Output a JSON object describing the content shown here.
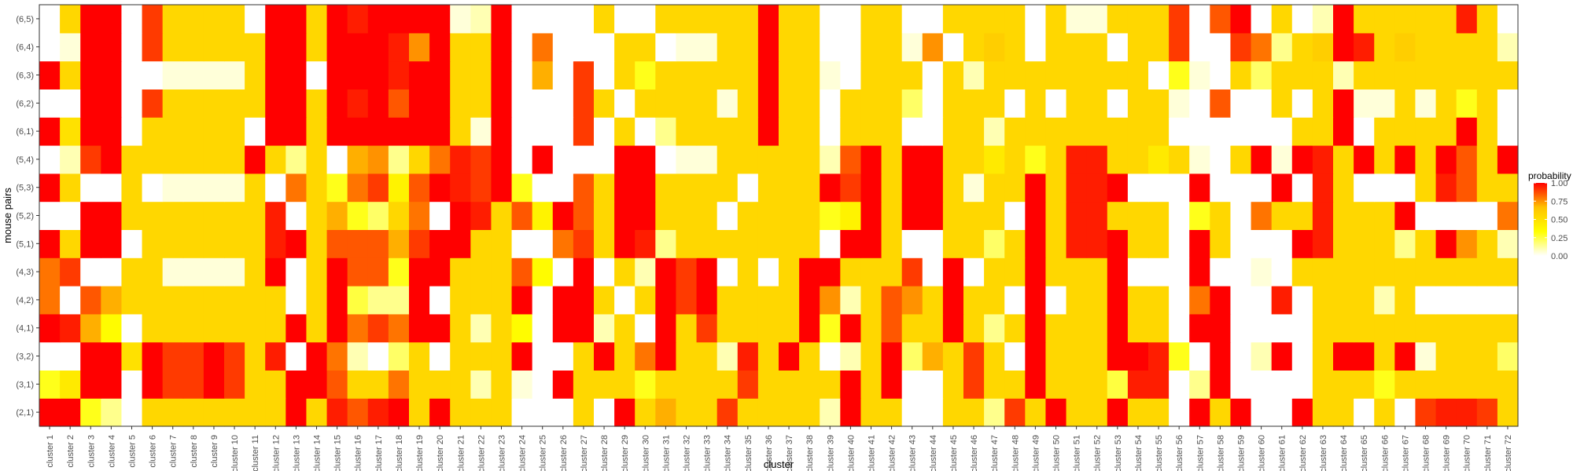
{
  "chart_data": {
    "type": "heatmap",
    "xlabel": "cluster",
    "ylabel": "mouse pairs",
    "x_categories": [
      "cluster 1",
      "cluster 2",
      "cluster 3",
      "cluster 4",
      "cluster 5",
      "cluster 6",
      "cluster 7",
      "cluster 8",
      "cluster 9",
      "cluster 10",
      "cluster 11",
      "cluster 12",
      "cluster 13",
      "cluster 14",
      "cluster 15",
      "cluster 16",
      "cluster 17",
      "cluster 18",
      "cluster 19",
      "cluster 20",
      "cluster 21",
      "cluster 22",
      "cluster 23",
      "cluster 24",
      "cluster 25",
      "cluster 26",
      "cluster 27",
      "cluster 28",
      "cluster 29",
      "cluster 30",
      "cluster 31",
      "cluster 32",
      "cluster 33",
      "cluster 34",
      "cluster 35",
      "cluster 36",
      "cluster 37",
      "cluster 38",
      "cluster 39",
      "cluster 40",
      "cluster 41",
      "cluster 42",
      "cluster 43",
      "cluster 44",
      "cluster 45",
      "cluster 46",
      "cluster 47",
      "cluster 48",
      "cluster 49",
      "cluster 50",
      "cluster 51",
      "cluster 52",
      "cluster 53",
      "cluster 54",
      "cluster 55",
      "cluster 56",
      "cluster 57",
      "cluster 58",
      "cluster 59",
      "cluster 60",
      "cluster 61",
      "cluster 62",
      "cluster 63",
      "cluster 64",
      "cluster 65",
      "cluster 66",
      "cluster 67",
      "cluster 68",
      "cluster 69",
      "cluster 70",
      "cluster 71",
      "cluster 72"
    ],
    "y_categories": [
      "(2,1)",
      "(3,1)",
      "(3,2)",
      "(4,1)",
      "(4,2)",
      "(4,3)",
      "(5,1)",
      "(5,2)",
      "(5,3)",
      "(5,4)",
      "(6,1)",
      "(6,2)",
      "(6,3)",
      "(6,4)",
      "(6,5)"
    ],
    "values": [
      [
        1.0,
        1.0,
        0.3,
        0.15,
        0.0,
        0.55,
        0.55,
        0.55,
        0.55,
        0.55,
        0.55,
        0.55,
        1.0,
        0.55,
        0.95,
        0.85,
        0.95,
        1.0,
        0.55,
        1.0,
        0.55,
        0.55,
        0.55,
        0.0,
        0.0,
        0.0,
        0.55,
        0.0,
        1.0,
        0.55,
        0.7,
        0.55,
        0.55,
        0.9,
        0.55,
        0.55,
        0.55,
        0.55,
        0.1,
        1.0,
        0.55,
        0.55,
        0.0,
        0.0,
        0.55,
        0.55,
        0.15,
        0.9,
        0.55,
        1.0,
        0.55,
        0.55,
        1.0,
        0.55,
        0.55,
        0.0,
        1.0,
        0.55,
        1.0,
        0.0,
        0.0,
        1.0,
        0.55,
        0.55,
        0.0,
        0.55,
        0.0,
        0.9,
        0.95,
        0.95,
        0.9,
        0.55
      ],
      [
        0.3,
        0.45,
        1.0,
        1.0,
        0.0,
        1.0,
        0.9,
        0.9,
        1.0,
        0.9,
        0.55,
        0.55,
        1.0,
        1.0,
        0.85,
        0.55,
        0.55,
        0.8,
        0.55,
        0.55,
        0.55,
        0.1,
        0.55,
        0.05,
        0.0,
        1.0,
        0.55,
        0.55,
        0.55,
        0.3,
        0.55,
        0.55,
        0.55,
        0.55,
        0.9,
        0.55,
        0.55,
        0.55,
        0.55,
        1.0,
        0.55,
        1.0,
        0.0,
        0.0,
        0.55,
        0.9,
        0.55,
        0.55,
        1.0,
        0.55,
        0.55,
        0.55,
        0.25,
        0.95,
        0.95,
        0.0,
        0.15,
        1.0,
        0.0,
        0.0,
        0.0,
        0.0,
        0.55,
        0.55,
        0.55,
        0.3,
        0.55,
        0.55,
        0.55,
        0.55,
        0.55,
        0.55
      ],
      [
        0.0,
        0.0,
        1.0,
        1.0,
        0.5,
        1.0,
        0.9,
        0.9,
        1.0,
        0.9,
        0.55,
        0.95,
        0.0,
        1.0,
        0.8,
        0.1,
        0.0,
        0.2,
        0.55,
        0.0,
        0.55,
        0.55,
        0.55,
        1.0,
        0.0,
        0.0,
        0.55,
        1.0,
        0.55,
        0.8,
        1.0,
        0.55,
        0.55,
        0.1,
        0.95,
        0.55,
        1.0,
        0.55,
        0.0,
        0.1,
        0.55,
        1.0,
        0.2,
        0.7,
        0.55,
        0.9,
        0.55,
        0.0,
        1.0,
        0.55,
        0.55,
        0.55,
        1.0,
        1.0,
        0.95,
        0.3,
        0.0,
        1.0,
        0.0,
        0.1,
        1.0,
        0.0,
        0.55,
        1.0,
        1.0,
        0.55,
        1.0,
        0.05,
        0.55,
        0.55,
        0.55,
        0.2
      ],
      [
        1.0,
        0.95,
        0.7,
        0.35,
        0.0,
        0.55,
        0.55,
        0.55,
        0.55,
        0.55,
        0.55,
        0.55,
        1.0,
        0.55,
        1.0,
        0.8,
        0.9,
        0.8,
        1.0,
        1.0,
        0.55,
        0.1,
        0.55,
        0.35,
        0.0,
        1.0,
        1.0,
        0.1,
        0.55,
        0.0,
        1.0,
        0.55,
        0.9,
        0.55,
        0.55,
        0.55,
        0.55,
        1.0,
        0.3,
        1.0,
        0.55,
        0.85,
        0.55,
        0.55,
        1.0,
        0.55,
        0.15,
        0.55,
        1.0,
        0.55,
        0.55,
        0.55,
        1.0,
        0.55,
        0.55,
        0.0,
        1.0,
        1.0,
        0.0,
        0.0,
        0.0,
        0.0,
        0.55,
        0.55,
        0.55,
        0.55,
        0.55,
        0.55,
        0.55,
        0.55,
        0.55,
        0.55
      ],
      [
        0.8,
        0.0,
        0.85,
        0.7,
        0.55,
        0.55,
        0.55,
        0.55,
        0.55,
        0.55,
        0.55,
        0.55,
        0.0,
        0.55,
        1.0,
        0.25,
        0.15,
        0.15,
        1.0,
        0.0,
        0.55,
        0.55,
        0.55,
        1.0,
        0.0,
        1.0,
        1.0,
        0.55,
        0.0,
        0.55,
        1.0,
        0.9,
        1.0,
        0.55,
        0.55,
        0.55,
        0.55,
        1.0,
        0.75,
        0.1,
        0.55,
        0.85,
        0.75,
        0.55,
        1.0,
        0.55,
        0.55,
        0.0,
        1.0,
        0.0,
        0.55,
        0.55,
        1.0,
        0.55,
        0.55,
        0.0,
        0.8,
        1.0,
        0.0,
        0.0,
        0.95,
        0.0,
        0.55,
        0.55,
        0.55,
        0.1,
        0.55,
        0.0,
        0.0,
        0.0,
        0.0,
        0.0
      ],
      [
        0.8,
        0.9,
        0.0,
        0.0,
        0.55,
        0.55,
        0.05,
        0.05,
        0.05,
        0.05,
        0.55,
        1.0,
        0.0,
        0.55,
        1.0,
        0.85,
        0.85,
        0.3,
        1.0,
        1.0,
        0.55,
        0.55,
        0.55,
        0.85,
        0.35,
        0.0,
        1.0,
        0.0,
        0.55,
        0.1,
        1.0,
        0.9,
        1.0,
        0.0,
        0.55,
        0.0,
        0.55,
        1.0,
        1.0,
        0.55,
        0.55,
        0.55,
        0.9,
        0.0,
        1.0,
        0.0,
        0.55,
        0.55,
        1.0,
        0.55,
        0.55,
        0.55,
        1.0,
        0.0,
        0.0,
        0.0,
        1.0,
        0.0,
        0.0,
        0.05,
        0.0,
        0.55,
        0.55,
        0.55,
        0.55,
        0.55,
        0.55,
        0.55,
        0.55,
        0.55,
        0.55,
        0.55
      ],
      [
        1.0,
        0.55,
        1.0,
        1.0,
        0.0,
        0.55,
        0.55,
        0.55,
        0.55,
        0.55,
        0.55,
        0.95,
        1.0,
        0.55,
        0.85,
        0.85,
        0.85,
        0.7,
        0.9,
        1.0,
        1.0,
        0.55,
        0.55,
        0.0,
        0.0,
        0.8,
        0.9,
        0.55,
        1.0,
        0.95,
        0.15,
        0.55,
        0.55,
        0.55,
        0.55,
        0.55,
        0.55,
        0.55,
        0.0,
        1.0,
        1.0,
        0.55,
        0.0,
        0.0,
        0.55,
        0.55,
        0.2,
        0.55,
        1.0,
        0.55,
        0.95,
        0.95,
        1.0,
        0.55,
        0.55,
        0.0,
        1.0,
        0.55,
        0.0,
        0.0,
        0.0,
        1.0,
        0.95,
        0.55,
        0.55,
        0.55,
        0.15,
        0.55,
        1.0,
        0.75,
        0.55,
        0.1
      ],
      [
        0.0,
        0.0,
        1.0,
        1.0,
        0.55,
        0.55,
        0.55,
        0.55,
        0.55,
        0.55,
        0.55,
        0.95,
        0.0,
        0.55,
        0.7,
        0.3,
        0.2,
        0.55,
        0.8,
        0.0,
        1.0,
        0.95,
        0.55,
        0.85,
        0.4,
        1.0,
        0.85,
        0.55,
        1.0,
        1.0,
        0.55,
        0.55,
        0.55,
        0.0,
        0.55,
        0.55,
        0.55,
        0.55,
        0.3,
        0.4,
        1.0,
        0.55,
        1.0,
        1.0,
        0.55,
        0.55,
        0.55,
        0.0,
        1.0,
        0.55,
        0.95,
        0.95,
        0.55,
        0.55,
        0.55,
        0.0,
        0.3,
        0.55,
        0.0,
        0.8,
        0.55,
        0.55,
        0.95,
        0.55,
        0.55,
        0.55,
        1.0,
        0.0,
        0.0,
        0.0,
        0.0,
        0.8
      ],
      [
        1.0,
        0.55,
        0.0,
        0.0,
        0.55,
        0.0,
        0.05,
        0.05,
        0.05,
        0.05,
        0.55,
        0.0,
        0.8,
        0.55,
        0.3,
        0.8,
        0.9,
        0.4,
        0.85,
        1.0,
        0.95,
        0.9,
        1.0,
        0.3,
        0.0,
        0.0,
        0.85,
        0.55,
        1.0,
        1.0,
        0.55,
        0.55,
        0.55,
        0.55,
        0.0,
        0.55,
        0.55,
        0.55,
        1.0,
        0.9,
        1.0,
        0.55,
        1.0,
        1.0,
        0.55,
        0.05,
        0.55,
        0.55,
        1.0,
        0.55,
        0.95,
        0.95,
        1.0,
        0.0,
        0.0,
        0.0,
        1.0,
        0.0,
        0.0,
        0.0,
        1.0,
        0.0,
        0.95,
        0.55,
        0.0,
        0.0,
        0.0,
        0.55,
        0.95,
        0.85,
        0.55,
        0.55
      ],
      [
        0.0,
        0.1,
        0.9,
        1.0,
        0.55,
        0.55,
        0.55,
        0.55,
        0.55,
        0.55,
        1.0,
        0.55,
        0.15,
        0.55,
        0.0,
        0.7,
        0.75,
        0.15,
        0.55,
        0.8,
        0.95,
        0.9,
        1.0,
        0.0,
        1.0,
        0.0,
        0.0,
        0.0,
        1.0,
        1.0,
        0.0,
        0.05,
        0.05,
        0.55,
        0.55,
        0.55,
        0.55,
        0.55,
        0.1,
        0.85,
        1.0,
        0.55,
        1.0,
        1.0,
        0.55,
        0.55,
        0.45,
        0.55,
        0.3,
        0.55,
        0.95,
        0.95,
        0.55,
        0.55,
        0.45,
        0.55,
        0.05,
        0.0,
        0.55,
        1.0,
        0.05,
        1.0,
        0.95,
        0.55,
        1.0,
        0.55,
        1.0,
        0.55,
        1.0,
        0.85,
        0.55,
        1.0
      ],
      [
        1.0,
        0.5,
        1.0,
        1.0,
        0.0,
        0.55,
        0.55,
        0.55,
        0.55,
        0.55,
        0.0,
        1.0,
        1.0,
        0.55,
        1.0,
        1.0,
        1.0,
        1.0,
        1.0,
        1.0,
        0.55,
        0.05,
        1.0,
        0.0,
        0.0,
        0.0,
        0.9,
        0.0,
        0.55,
        0.0,
        0.15,
        0.55,
        0.55,
        0.55,
        0.55,
        1.0,
        0.55,
        0.55,
        0.0,
        0.55,
        0.55,
        0.55,
        0.0,
        0.0,
        0.55,
        0.55,
        0.1,
        0.55,
        0.55,
        0.55,
        0.55,
        0.55,
        0.55,
        0.55,
        0.55,
        0.0,
        0.0,
        0.0,
        0.0,
        0.0,
        0.0,
        0.55,
        0.55,
        1.0,
        0.0,
        0.55,
        0.55,
        0.55,
        0.55,
        1.0,
        0.55,
        0.0
      ],
      [
        0.0,
        0.0,
        1.0,
        1.0,
        0.0,
        0.9,
        0.55,
        0.55,
        0.55,
        0.55,
        0.55,
        1.0,
        1.0,
        0.55,
        1.0,
        0.95,
        1.0,
        0.85,
        1.0,
        1.0,
        0.55,
        0.55,
        1.0,
        0.0,
        0.0,
        0.0,
        0.9,
        0.55,
        0.0,
        0.55,
        0.55,
        0.55,
        0.55,
        0.05,
        0.55,
        1.0,
        0.55,
        0.55,
        0.0,
        0.55,
        0.55,
        0.55,
        0.2,
        0.0,
        0.55,
        0.55,
        0.55,
        0.0,
        0.55,
        0.0,
        0.55,
        0.55,
        0.0,
        0.55,
        0.55,
        0.05,
        0.0,
        0.85,
        0.0,
        0.0,
        0.55,
        0.0,
        0.55,
        1.0,
        0.05,
        0.05,
        0.55,
        0.05,
        0.55,
        0.3,
        0.55,
        0.0
      ],
      [
        1.0,
        0.55,
        1.0,
        1.0,
        0.0,
        0.0,
        0.05,
        0.05,
        0.05,
        0.05,
        0.55,
        1.0,
        1.0,
        0.0,
        1.0,
        1.0,
        1.0,
        0.95,
        1.0,
        1.0,
        0.55,
        0.55,
        1.0,
        0.0,
        0.7,
        0.0,
        0.9,
        0.0,
        0.55,
        0.3,
        0.55,
        0.55,
        0.55,
        0.55,
        0.55,
        1.0,
        0.55,
        0.55,
        0.05,
        0.0,
        0.55,
        0.55,
        0.55,
        0.0,
        0.55,
        0.1,
        0.55,
        0.55,
        0.55,
        0.55,
        0.55,
        0.55,
        0.55,
        0.55,
        0.0,
        0.3,
        0.05,
        0.0,
        0.55,
        0.2,
        0.55,
        0.55,
        0.55,
        0.1,
        0.55,
        0.55,
        0.55,
        0.55,
        0.55,
        0.55,
        0.55,
        0.55
      ],
      [
        0.0,
        0.05,
        1.0,
        1.0,
        0.0,
        0.9,
        0.55,
        0.55,
        0.55,
        0.55,
        0.55,
        1.0,
        1.0,
        0.55,
        1.0,
        1.0,
        1.0,
        0.95,
        0.75,
        1.0,
        0.55,
        0.55,
        1.0,
        0.0,
        0.8,
        0.0,
        0.0,
        0.0,
        0.55,
        0.55,
        0.0,
        0.05,
        0.05,
        0.55,
        0.55,
        1.0,
        0.55,
        0.55,
        0.0,
        0.0,
        0.55,
        0.55,
        0.05,
        0.75,
        0.0,
        0.55,
        0.6,
        0.55,
        0.0,
        0.55,
        0.55,
        0.55,
        0.0,
        0.55,
        0.55,
        0.9,
        0.0,
        0.0,
        0.9,
        0.8,
        0.15,
        0.55,
        0.6,
        1.0,
        0.95,
        0.55,
        0.6,
        0.55,
        0.55,
        0.55,
        0.55,
        0.1
      ],
      [
        0.0,
        0.55,
        1.0,
        1.0,
        0.0,
        0.9,
        0.55,
        0.55,
        0.55,
        0.55,
        0.0,
        1.0,
        1.0,
        0.55,
        1.0,
        0.95,
        1.0,
        1.0,
        1.0,
        1.0,
        0.05,
        0.1,
        1.0,
        0.0,
        0.0,
        0.0,
        0.0,
        0.55,
        0.0,
        0.0,
        0.55,
        0.55,
        0.55,
        0.55,
        0.55,
        1.0,
        0.55,
        0.55,
        0.0,
        0.0,
        0.55,
        0.55,
        0.0,
        0.0,
        0.55,
        0.55,
        0.55,
        0.55,
        0.0,
        0.55,
        0.05,
        0.05,
        0.55,
        0.55,
        0.55,
        0.9,
        0.0,
        0.85,
        1.0,
        0.0,
        0.55,
        0.0,
        0.1,
        1.0,
        0.55,
        0.55,
        0.55,
        0.55,
        0.55,
        0.95,
        0.55,
        0.0
      ]
    ],
    "value_range": [
      0,
      1
    ],
    "colorscale": [
      "#FFFFFF",
      "#FFFF00",
      "#FFC200",
      "#FF0000"
    ],
    "legend": {
      "title": "probability",
      "ticks": [
        "1.00",
        "0.75",
        "0.50",
        "0.25",
        "0.00"
      ],
      "placement": "right"
    },
    "grid": false,
    "panel_border": true
  }
}
